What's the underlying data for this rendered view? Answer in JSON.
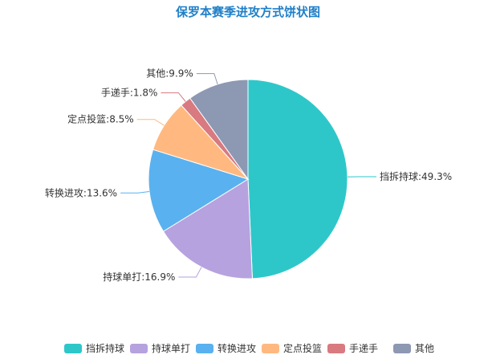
{
  "chart_data": {
    "type": "pie",
    "title": "保罗本赛季进攻方式饼状图",
    "categories": [
      "挡拆持球",
      "持球单打",
      "转换进攻",
      "定点投篮",
      "手递手",
      "其他"
    ],
    "values": [
      49.3,
      16.9,
      13.6,
      8.5,
      1.8,
      9.9
    ],
    "unit": "%",
    "labels": [
      "挡拆持球:49.3%",
      "持球单打:16.9%",
      "转换进攻:13.6%",
      "定点投篮:8.5%",
      "手递手:1.8%",
      "其他:9.9%"
    ],
    "colors": [
      "#2ec7c9",
      "#b6a2de",
      "#5ab1ef",
      "#ffb980",
      "#d87a80",
      "#8d98b3"
    ],
    "legend": {
      "position": "bottom",
      "items": [
        "挡拆持球",
        "持球单打",
        "转换进攻",
        "定点投篮",
        "手递手",
        "其他"
      ]
    }
  }
}
